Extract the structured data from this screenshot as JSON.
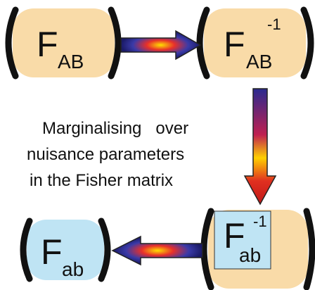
{
  "nodes": [
    {
      "symbol": "F",
      "subscript": "AB"
    },
    {
      "symbol": "F",
      "subscript": "AB",
      "superscript": "-1"
    },
    {
      "symbol": "F",
      "subscript": "ab",
      "superscript": "-1"
    },
    {
      "symbol": "F",
      "subscript": "ab"
    }
  ],
  "caption": [
    "Marginalising   over",
    "nuisance parameters",
    "in the Fisher matrix"
  ]
}
